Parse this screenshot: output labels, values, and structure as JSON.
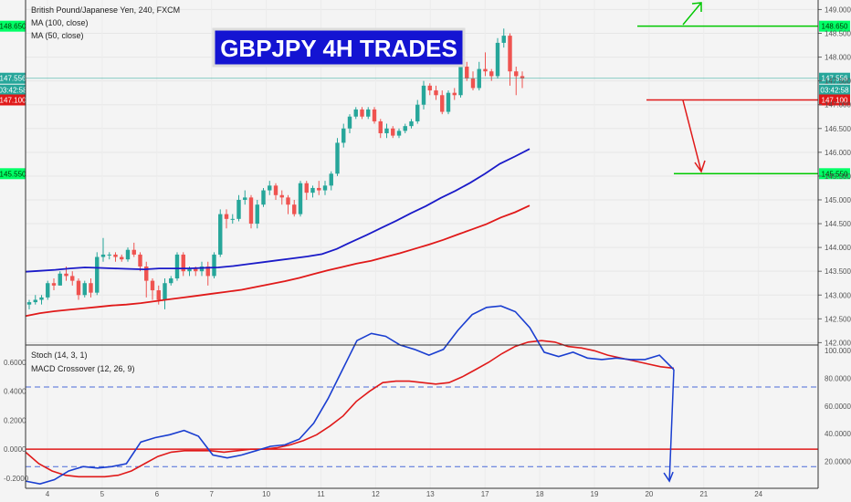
{
  "chart_data": {
    "type": "candlestick",
    "title": "GBPJPY 4H TRADES",
    "instrument": {
      "symbol": "British Pound/Japanese Yen, 240, FXCM",
      "indicators": [
        "MA (100, close)",
        "MA (50, close)"
      ]
    },
    "x_axis": {
      "labels": [
        "4",
        "5",
        "6",
        "7",
        "10",
        "11",
        "12",
        "13",
        "17",
        "18",
        "19",
        "20",
        "21",
        "24"
      ]
    },
    "price_axis": {
      "ticks": [
        "149.000",
        "148.500",
        "148.000",
        "147.500",
        "147.000",
        "146.500",
        "146.000",
        "145.500",
        "145.000",
        "144.500",
        "144.000",
        "143.500",
        "143.000",
        "142.500",
        "142.000"
      ],
      "range": [
        141.95,
        149.2
      ]
    },
    "candles": [
      [
        142.8,
        142.9,
        142.7,
        142.85
      ],
      [
        142.85,
        143.0,
        142.8,
        142.9
      ],
      [
        142.9,
        143.0,
        142.8,
        142.95
      ],
      [
        142.95,
        143.3,
        142.9,
        143.25
      ],
      [
        143.25,
        143.35,
        143.1,
        143.2
      ],
      [
        143.2,
        143.5,
        143.2,
        143.45
      ],
      [
        143.45,
        143.6,
        143.3,
        143.4
      ],
      [
        143.4,
        143.5,
        143.2,
        143.3
      ],
      [
        143.3,
        143.35,
        142.9,
        143.0
      ],
      [
        143.0,
        143.3,
        142.95,
        143.25
      ],
      [
        143.25,
        143.35,
        142.95,
        143.05
      ],
      [
        143.05,
        143.9,
        143.0,
        143.8
      ],
      [
        143.8,
        144.2,
        143.7,
        143.85
      ],
      [
        143.85,
        143.9,
        143.75,
        143.85
      ],
      [
        143.85,
        143.9,
        143.7,
        143.8
      ],
      [
        143.8,
        143.85,
        143.7,
        143.75
      ],
      [
        143.75,
        144.0,
        143.7,
        143.95
      ],
      [
        143.95,
        144.1,
        143.8,
        143.85
      ],
      [
        143.85,
        143.9,
        143.5,
        143.6
      ],
      [
        143.6,
        143.7,
        142.95,
        143.3
      ],
      [
        143.3,
        143.35,
        142.9,
        143.1
      ],
      [
        143.1,
        143.2,
        142.8,
        142.9
      ],
      [
        142.9,
        143.35,
        142.7,
        143.25
      ],
      [
        143.25,
        143.4,
        143.2,
        143.35
      ],
      [
        143.35,
        143.9,
        143.3,
        143.85
      ],
      [
        143.85,
        143.9,
        143.4,
        143.5
      ],
      [
        143.5,
        143.6,
        143.4,
        143.55
      ],
      [
        143.55,
        143.6,
        143.4,
        143.5
      ],
      [
        143.5,
        143.7,
        143.4,
        143.6
      ],
      [
        143.6,
        143.7,
        143.2,
        143.4
      ],
      [
        143.4,
        143.9,
        143.35,
        143.85
      ],
      [
        143.85,
        144.8,
        143.8,
        144.7
      ],
      [
        144.7,
        144.8,
        144.4,
        144.6
      ],
      [
        144.6,
        144.7,
        144.5,
        144.6
      ],
      [
        144.6,
        145.1,
        144.55,
        145.0
      ],
      [
        145.0,
        145.2,
        144.9,
        145.05
      ],
      [
        145.05,
        145.1,
        144.4,
        144.5
      ],
      [
        144.5,
        145.0,
        144.4,
        144.9
      ],
      [
        144.9,
        145.25,
        144.85,
        145.2
      ],
      [
        145.2,
        145.4,
        145.1,
        145.3
      ],
      [
        145.3,
        145.35,
        145.0,
        145.1
      ],
      [
        145.1,
        145.2,
        144.9,
        145.05
      ],
      [
        145.05,
        145.1,
        144.7,
        144.9
      ],
      [
        144.9,
        145.0,
        144.65,
        144.7
      ],
      [
        144.7,
        145.4,
        144.65,
        145.35
      ],
      [
        145.35,
        145.4,
        145.0,
        145.15
      ],
      [
        145.15,
        145.3,
        145.05,
        145.25
      ],
      [
        145.25,
        145.4,
        145.1,
        145.2
      ],
      [
        145.2,
        145.4,
        145.1,
        145.3
      ],
      [
        145.3,
        145.6,
        145.2,
        145.55
      ],
      [
        145.55,
        146.3,
        145.5,
        146.2
      ],
      [
        146.2,
        146.6,
        146.1,
        146.5
      ],
      [
        146.5,
        146.8,
        146.4,
        146.75
      ],
      [
        146.75,
        146.95,
        146.7,
        146.9
      ],
      [
        146.9,
        146.95,
        146.7,
        146.75
      ],
      [
        146.75,
        146.95,
        146.7,
        146.9
      ],
      [
        146.9,
        146.95,
        146.6,
        146.65
      ],
      [
        146.65,
        146.7,
        146.3,
        146.4
      ],
      [
        146.4,
        146.6,
        146.3,
        146.5
      ],
      [
        146.5,
        146.55,
        146.3,
        146.35
      ],
      [
        146.35,
        146.5,
        146.3,
        146.45
      ],
      [
        146.45,
        146.6,
        146.4,
        146.55
      ],
      [
        146.55,
        146.7,
        146.5,
        146.65
      ],
      [
        146.65,
        147.1,
        146.6,
        147.0
      ],
      [
        147.0,
        147.5,
        146.9,
        147.4
      ],
      [
        147.4,
        147.45,
        147.2,
        147.3
      ],
      [
        147.3,
        147.4,
        147.1,
        147.2
      ],
      [
        147.2,
        147.3,
        146.8,
        146.85
      ],
      [
        146.85,
        147.3,
        146.8,
        147.25
      ],
      [
        147.25,
        147.35,
        147.1,
        147.2
      ],
      [
        147.2,
        147.9,
        147.15,
        147.8
      ],
      [
        147.8,
        147.9,
        147.5,
        147.55
      ],
      [
        147.55,
        147.7,
        147.3,
        147.35
      ],
      [
        147.35,
        147.9,
        147.3,
        147.75
      ],
      [
        147.75,
        148.1,
        147.6,
        147.7
      ],
      [
        147.7,
        147.75,
        147.5,
        147.6
      ],
      [
        147.6,
        148.4,
        147.55,
        148.3
      ],
      [
        148.3,
        148.6,
        148.2,
        148.45
      ],
      [
        148.45,
        148.5,
        147.4,
        147.7
      ],
      [
        147.7,
        147.8,
        147.2,
        147.6
      ],
      [
        147.6,
        147.7,
        147.35,
        147.55
      ]
    ],
    "ma_100": [
      142.56,
      142.62,
      142.66,
      142.69,
      142.72,
      142.75,
      142.78,
      142.8,
      142.83,
      142.87,
      142.91,
      142.95,
      142.99,
      143.03,
      143.07,
      143.11,
      143.17,
      143.23,
      143.29,
      143.36,
      143.44,
      143.52,
      143.59,
      143.66,
      143.72,
      143.8,
      143.88,
      143.97,
      144.06,
      144.16,
      144.27,
      144.38,
      144.49,
      144.63,
      144.74,
      144.88
    ],
    "ma_50": [
      143.49,
      143.51,
      143.53,
      143.56,
      143.58,
      143.57,
      143.56,
      143.55,
      143.54,
      143.56,
      143.56,
      143.56,
      143.57,
      143.58,
      143.61,
      143.65,
      143.69,
      143.73,
      143.77,
      143.81,
      143.86,
      143.97,
      144.12,
      144.26,
      144.41,
      144.56,
      144.72,
      144.87,
      145.04,
      145.19,
      145.36,
      145.55,
      145.76,
      145.91,
      146.07
    ],
    "annotations": {
      "current_price": {
        "label": "147.556",
        "value": 147.556,
        "countdown": "03:42:58"
      },
      "target_up": {
        "label": "148.650",
        "value": 148.65
      },
      "entry_short": {
        "label": "147.100",
        "value": 147.1
      },
      "target_down": {
        "label": "145.550",
        "value": 145.55
      }
    },
    "stoch": {
      "label": "Stoch (14, 3, 1)",
      "k": [
        -0.22,
        -0.24,
        -0.21,
        -0.15,
        -0.12,
        -0.13,
        -0.12,
        -0.1,
        0.05,
        0.08,
        0.1,
        0.13,
        0.09,
        -0.04,
        -0.06,
        -0.04,
        -0.01,
        0.02,
        0.03,
        0.07,
        0.18,
        0.35,
        0.55,
        0.75,
        0.8,
        0.78,
        0.72,
        0.69,
        0.65,
        0.69,
        0.82,
        0.93,
        0.98,
        0.99,
        0.95,
        0.84,
        0.67,
        0.64,
        0.67,
        0.63,
        0.62,
        0.63,
        0.62,
        0.62,
        0.65,
        0.55
      ],
      "k_drawn_extension": [
        [
          19.6,
          0.52
        ],
        [
          20.25,
          -0.22
        ]
      ]
    },
    "macd_crossover": {
      "label": "MACD Crossover (12, 26, 9)",
      "signal": [
        -0.02,
        -0.1,
        -0.15,
        -0.18,
        -0.19,
        -0.19,
        -0.19,
        -0.18,
        -0.15,
        -0.1,
        -0.05,
        -0.02,
        -0.01,
        -0.01,
        -0.01,
        -0.02,
        -0.01,
        0.0,
        0.0,
        0.01,
        0.03,
        0.06,
        0.1,
        0.16,
        0.23,
        0.33,
        0.4,
        0.46,
        0.47,
        0.47,
        0.46,
        0.45,
        0.46,
        0.5,
        0.55,
        0.6,
        0.66,
        0.71,
        0.74,
        0.75,
        0.74,
        0.71,
        0.7,
        0.68,
        0.65,
        0.63,
        0.61,
        0.59,
        0.57,
        0.56
      ],
      "ticks_left": [
        "0.6000",
        "0.4000",
        "0.2000",
        "0.0000",
        "-0.2000"
      ]
    },
    "oscillator_right_ticks": [
      "100.0000",
      "80.0000",
      "60.0000",
      "40.0000",
      "20.0000"
    ],
    "oscillator_levels": [
      0.43,
      0.0,
      -0.12
    ],
    "colors": {
      "up": "#26a69a",
      "down": "#ef5350",
      "ma100": "#e01919",
      "ma50": "#1a1ac8",
      "target": "#00c800",
      "entry": "#e01919",
      "price_line": "#26a69a",
      "stoch": "#1a3ed0",
      "signal": "#e01919",
      "title_bg": "#1414d2"
    }
  }
}
